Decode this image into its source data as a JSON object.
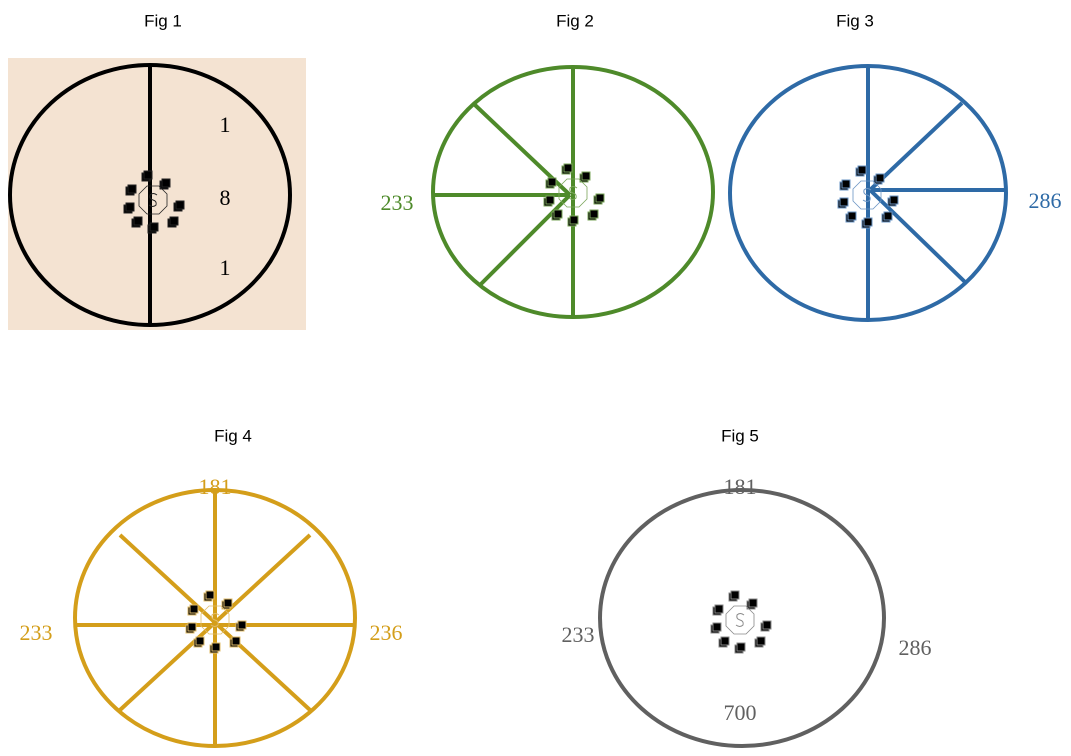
{
  "figures": [
    {
      "title": "Fig 1",
      "labels": [
        "1",
        "8",
        "1"
      ]
    },
    {
      "title": "Fig 2",
      "labels": [
        "233"
      ]
    },
    {
      "title": "Fig 3",
      "labels": [
        "286"
      ]
    },
    {
      "title": "Fig 4",
      "labels": [
        "181",
        "233",
        "236"
      ]
    },
    {
      "title": "Fig 5",
      "labels": [
        "181",
        "233",
        "286",
        "700"
      ]
    }
  ]
}
